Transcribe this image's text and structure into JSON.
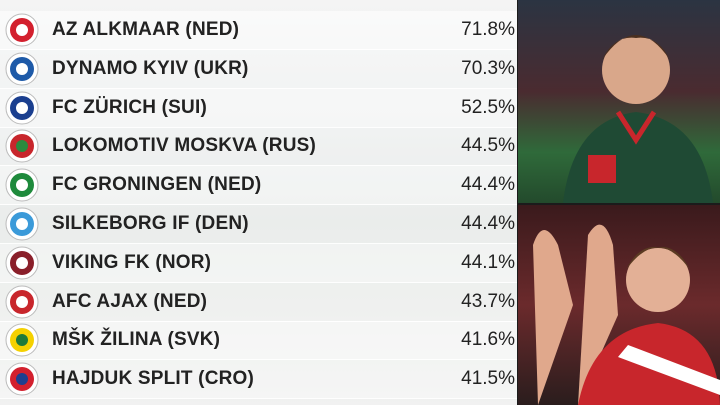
{
  "rows": [
    {
      "team": "AZ ALKMAAR (NED)",
      "pct": "71.8%"
    },
    {
      "team": "DYNAMO KYIV (UKR)",
      "pct": "70.3%"
    },
    {
      "team": "FC ZÜRICH (SUI)",
      "pct": "52.5%"
    },
    {
      "team": "LOKOMOTIV MOSKVA (RUS)",
      "pct": "44.5%"
    },
    {
      "team": "FC GRONINGEN (NED)",
      "pct": "44.4%"
    },
    {
      "team": "SILKEBORG IF (DEN)",
      "pct": "44.4%"
    },
    {
      "team": "VIKING FK (NOR)",
      "pct": "44.1%"
    },
    {
      "team": "AFC AJAX (NED)",
      "pct": "43.7%"
    },
    {
      "team": "MŠK ŽILINA (SVK)",
      "pct": "41.6%"
    },
    {
      "team": "HAJDUK SPLIT (CRO)",
      "pct": "41.5%"
    }
  ]
}
